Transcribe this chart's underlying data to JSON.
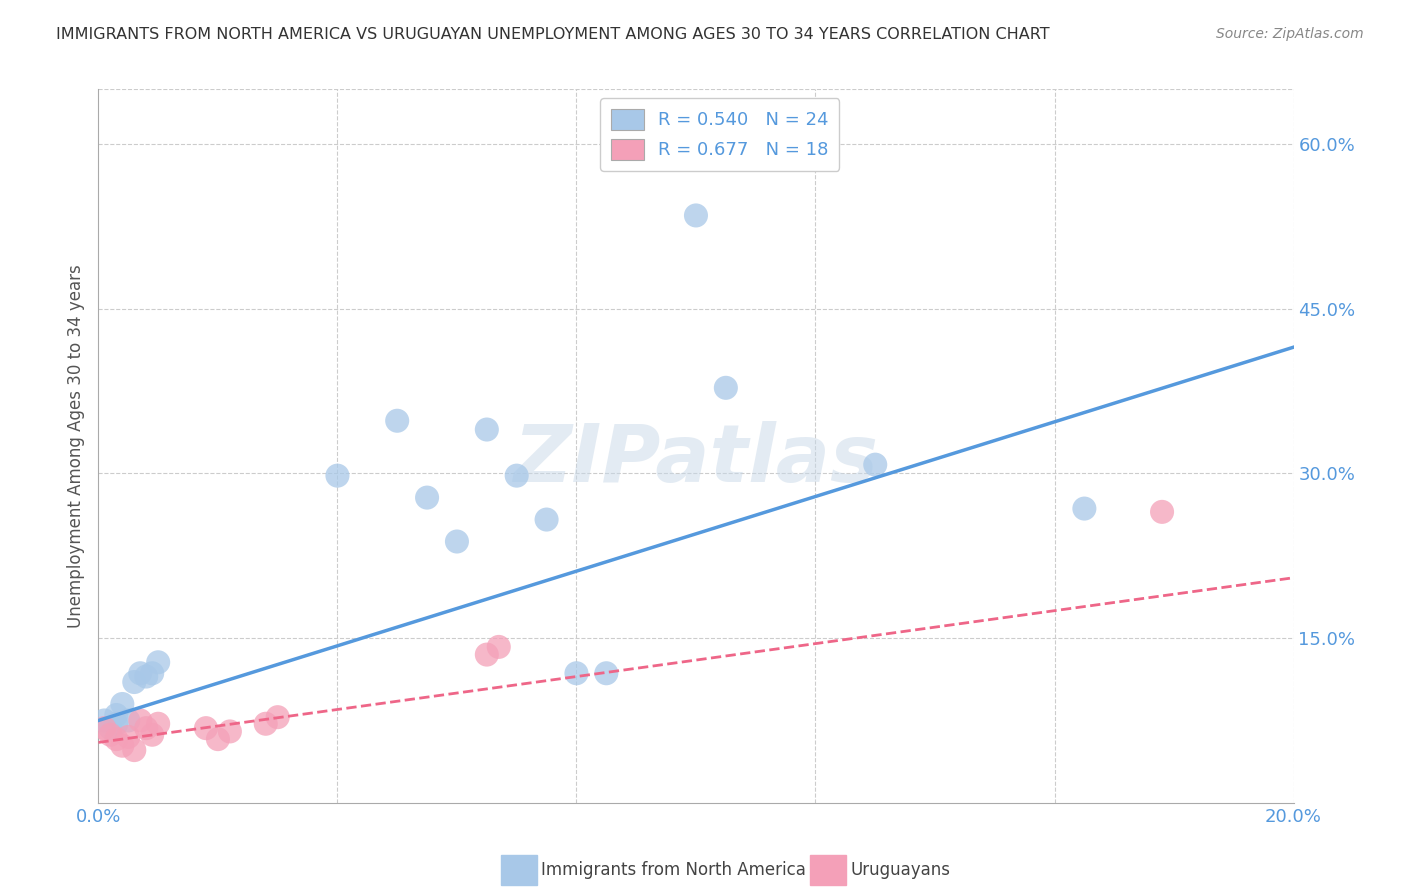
{
  "title": "IMMIGRANTS FROM NORTH AMERICA VS URUGUAYAN UNEMPLOYMENT AMONG AGES 30 TO 34 YEARS CORRELATION CHART",
  "source": "Source: ZipAtlas.com",
  "ylabel": "Unemployment Among Ages 30 to 34 years",
  "xlim": [
    0.0,
    0.2
  ],
  "ylim": [
    0.0,
    0.65
  ],
  "xticks": [
    0.0,
    0.04,
    0.08,
    0.12,
    0.16,
    0.2
  ],
  "xtick_labels": [
    "0.0%",
    "",
    "",
    "",
    "",
    "20.0%"
  ],
  "yticks": [
    0.15,
    0.3,
    0.45,
    0.6
  ],
  "ytick_labels": [
    "15.0%",
    "30.0%",
    "45.0%",
    "60.0%"
  ],
  "legend1_label": "R = 0.540   N = 24",
  "legend2_label": "R = 0.677   N = 18",
  "blue_color": "#a8c8e8",
  "pink_color": "#f4a0b8",
  "blue_line_color": "#5599dd",
  "pink_line_color": "#ee6688",
  "blue_scatter": [
    [
      0.001,
      0.075
    ],
    [
      0.002,
      0.068
    ],
    [
      0.003,
      0.072
    ],
    [
      0.003,
      0.08
    ],
    [
      0.004,
      0.09
    ],
    [
      0.005,
      0.075
    ],
    [
      0.006,
      0.11
    ],
    [
      0.007,
      0.118
    ],
    [
      0.008,
      0.115
    ],
    [
      0.009,
      0.118
    ],
    [
      0.01,
      0.128
    ],
    [
      0.04,
      0.298
    ],
    [
      0.05,
      0.348
    ],
    [
      0.055,
      0.278
    ],
    [
      0.06,
      0.238
    ],
    [
      0.065,
      0.34
    ],
    [
      0.07,
      0.298
    ],
    [
      0.075,
      0.258
    ],
    [
      0.08,
      0.118
    ],
    [
      0.085,
      0.118
    ],
    [
      0.1,
      0.535
    ],
    [
      0.105,
      0.378
    ],
    [
      0.13,
      0.308
    ],
    [
      0.165,
      0.268
    ]
  ],
  "pink_scatter": [
    [
      0.001,
      0.068
    ],
    [
      0.002,
      0.062
    ],
    [
      0.003,
      0.058
    ],
    [
      0.004,
      0.052
    ],
    [
      0.005,
      0.06
    ],
    [
      0.006,
      0.048
    ],
    [
      0.007,
      0.075
    ],
    [
      0.008,
      0.068
    ],
    [
      0.009,
      0.062
    ],
    [
      0.01,
      0.072
    ],
    [
      0.018,
      0.068
    ],
    [
      0.02,
      0.058
    ],
    [
      0.022,
      0.065
    ],
    [
      0.028,
      0.072
    ],
    [
      0.03,
      0.078
    ],
    [
      0.065,
      0.135
    ],
    [
      0.067,
      0.142
    ],
    [
      0.178,
      0.265
    ]
  ],
  "blue_trendline_x": [
    0.0,
    0.2
  ],
  "blue_trendline_y": [
    0.075,
    0.415
  ],
  "pink_trendline_x": [
    0.0,
    0.2
  ],
  "pink_trendline_y": [
    0.055,
    0.205
  ],
  "watermark": "ZIPatlas",
  "background_color": "#ffffff",
  "grid_color": "#cccccc",
  "title_color": "#333333",
  "source_color": "#888888",
  "tick_color": "#5599dd",
  "ylabel_color": "#555555"
}
